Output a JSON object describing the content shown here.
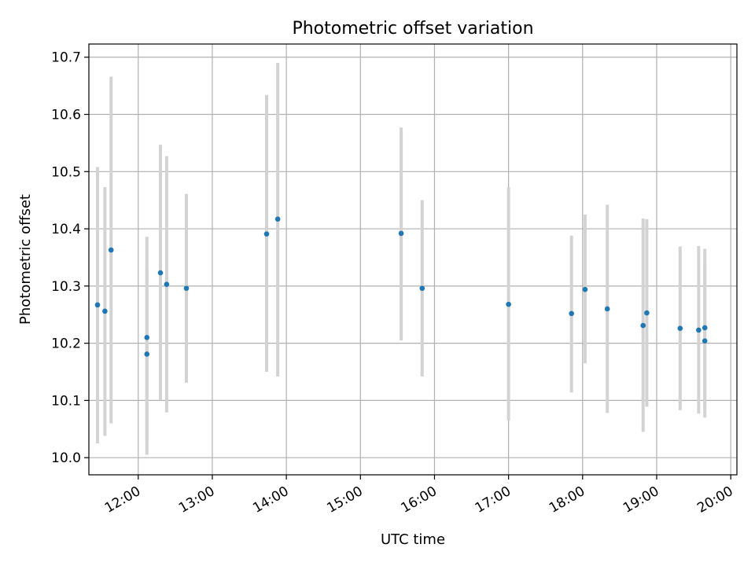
{
  "chart_data": {
    "type": "scatter",
    "title": "Photometric offset variation",
    "xlabel": "UTC time",
    "ylabel": "Photometric offset",
    "x_unit": "hours UTC",
    "xlim": [
      "11:20",
      "20:05"
    ],
    "ylim": [
      9.97,
      10.723
    ],
    "grid": true,
    "x_ticks": [
      "12:00",
      "13:00",
      "14:00",
      "15:00",
      "16:00",
      "17:00",
      "18:00",
      "19:00",
      "20:00"
    ],
    "y_ticks": [
      "10.0",
      "10.1",
      "10.2",
      "10.3",
      "10.4",
      "10.5",
      "10.6",
      "10.7"
    ],
    "colors": {
      "points": "#1f77b4",
      "errorbars": "#d3d3d3",
      "grid": "#b0b0b0"
    },
    "points": [
      {
        "x": "11:27",
        "y": 10.267,
        "ylo": 10.025,
        "yhi": 10.508
      },
      {
        "x": "11:33",
        "y": 10.256,
        "ylo": 10.038,
        "yhi": 10.473
      },
      {
        "x": "11:38",
        "y": 10.363,
        "ylo": 10.06,
        "yhi": 10.666
      },
      {
        "x": "12:07",
        "y": 10.181,
        "ylo": 10.03,
        "yhi": 10.33
      },
      {
        "x": "12:07",
        "y": 10.21,
        "ylo": 10.005,
        "yhi": 10.386
      },
      {
        "x": "12:18",
        "y": 10.323,
        "ylo": 10.1,
        "yhi": 10.547
      },
      {
        "x": "12:23",
        "y": 10.303,
        "ylo": 10.079,
        "yhi": 10.527
      },
      {
        "x": "12:39",
        "y": 10.296,
        "ylo": 10.131,
        "yhi": 10.461
      },
      {
        "x": "13:44",
        "y": 10.391,
        "ylo": 10.15,
        "yhi": 10.634
      },
      {
        "x": "13:53",
        "y": 10.417,
        "ylo": 10.142,
        "yhi": 10.69
      },
      {
        "x": "15:33",
        "y": 10.392,
        "ylo": 10.205,
        "yhi": 10.577
      },
      {
        "x": "15:50",
        "y": 10.296,
        "ylo": 10.142,
        "yhi": 10.45
      },
      {
        "x": "17:00",
        "y": 10.268,
        "ylo": 10.065,
        "yhi": 10.473
      },
      {
        "x": "17:51",
        "y": 10.252,
        "ylo": 10.114,
        "yhi": 10.388
      },
      {
        "x": "18:02",
        "y": 10.294,
        "ylo": 10.165,
        "yhi": 10.425
      },
      {
        "x": "18:20",
        "y": 10.26,
        "ylo": 10.078,
        "yhi": 10.442
      },
      {
        "x": "18:49",
        "y": 10.231,
        "ylo": 10.045,
        "yhi": 10.418
      },
      {
        "x": "18:52",
        "y": 10.253,
        "ylo": 10.089,
        "yhi": 10.417
      },
      {
        "x": "19:19",
        "y": 10.226,
        "ylo": 10.083,
        "yhi": 10.369
      },
      {
        "x": "19:34",
        "y": 10.223,
        "ylo": 10.077,
        "yhi": 10.37
      },
      {
        "x": "19:39",
        "y": 10.227,
        "ylo": 10.088,
        "yhi": 10.365
      },
      {
        "x": "19:39",
        "y": 10.204,
        "ylo": 10.07,
        "yhi": 10.338
      }
    ]
  }
}
